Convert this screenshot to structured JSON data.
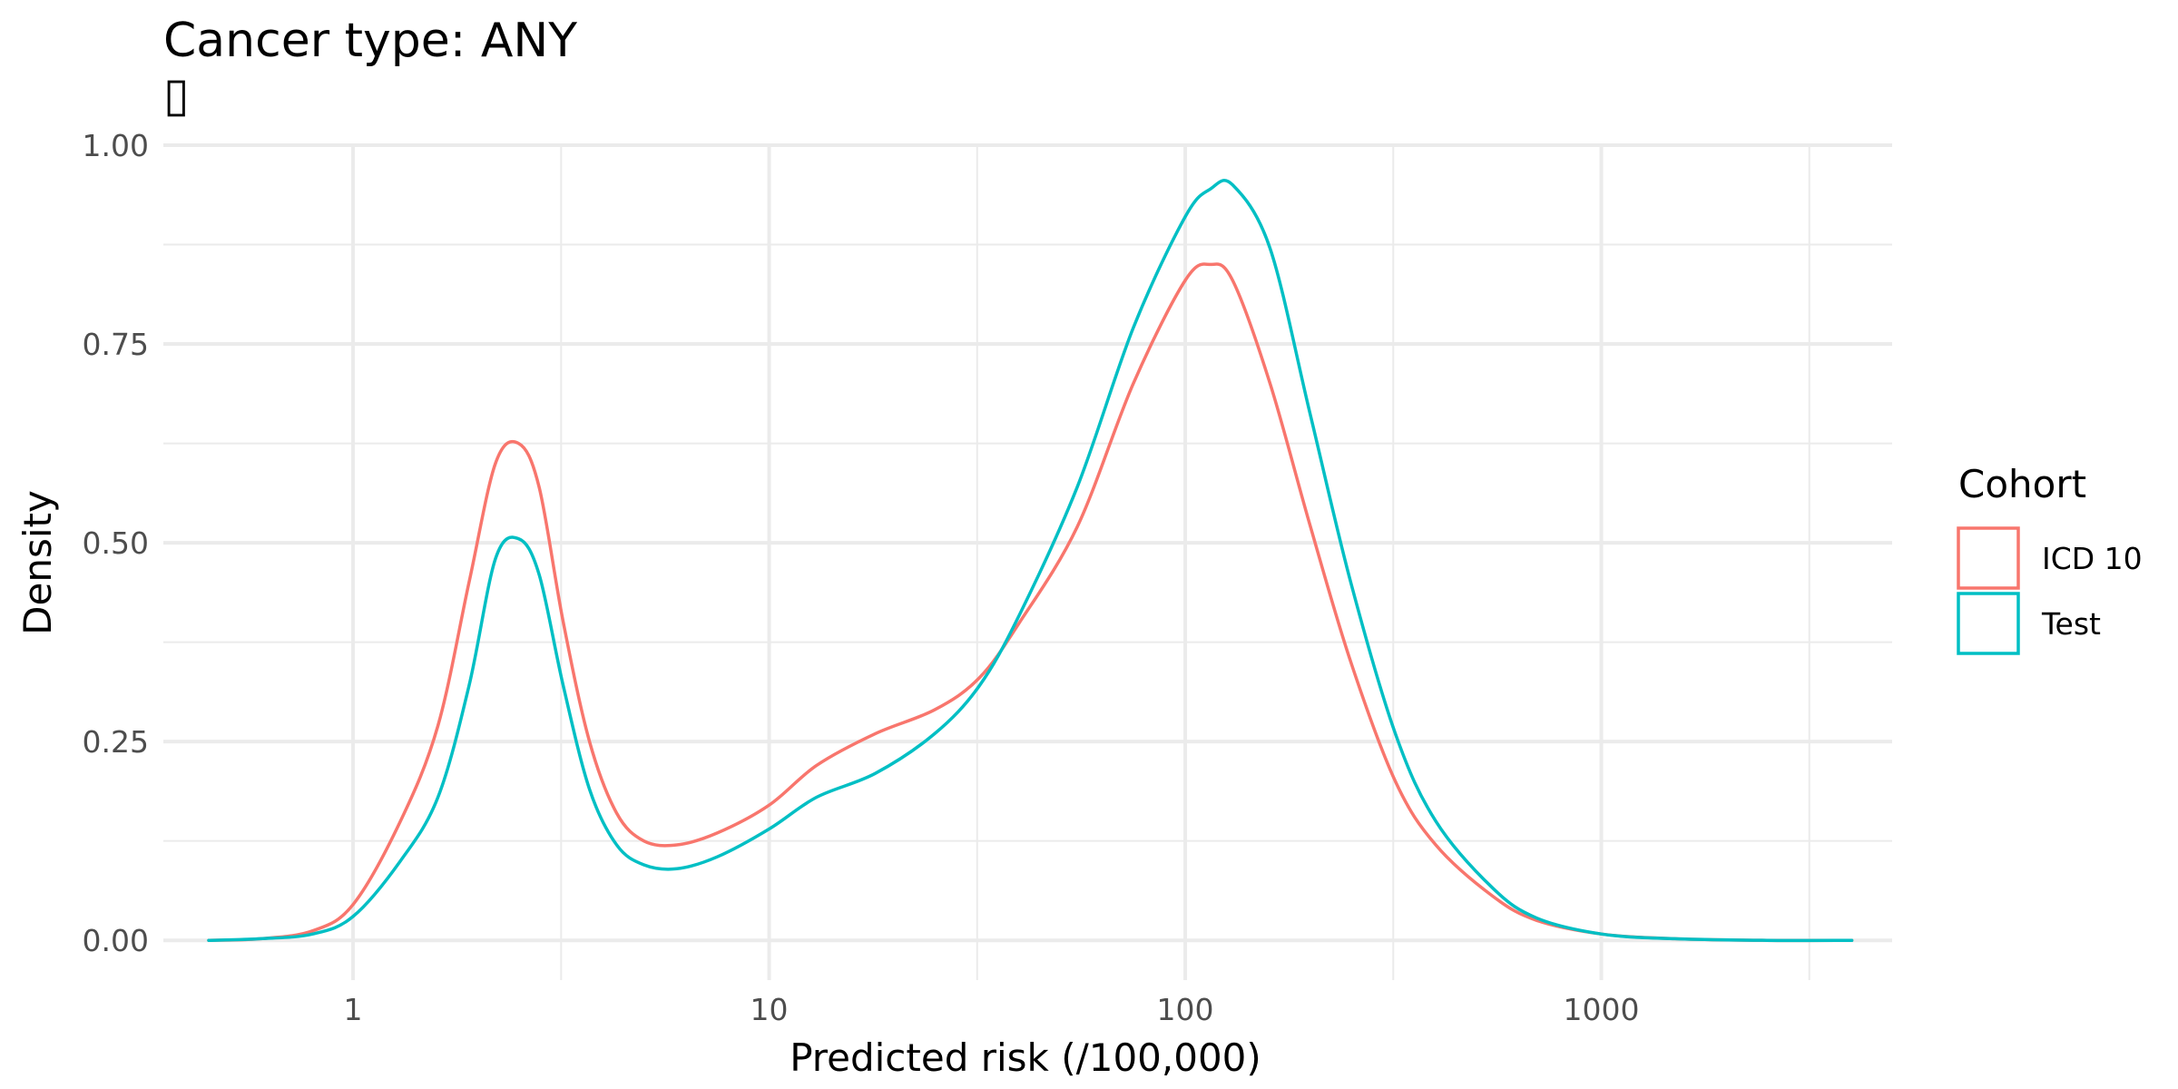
{
  "chart_data": {
    "type": "line",
    "title": "Cancer type: ANY",
    "subtitle_glyph": "▯",
    "xlabel": "Predicted risk (/100,000)",
    "ylabel": "Density",
    "x_scale": "log10",
    "x_range": [
      0.35,
      5000
    ],
    "y_range": [
      -0.05,
      1.0
    ],
    "x_ticks": [
      1,
      10,
      100,
      1000
    ],
    "x_tick_labels": [
      "1",
      "10",
      "100",
      "1000"
    ],
    "y_ticks": [
      0,
      0.25,
      0.5,
      0.75,
      1.0
    ],
    "y_tick_labels": [
      "0.00",
      "0.25",
      "0.50",
      "0.75",
      "1.00"
    ],
    "grid": true,
    "legend": {
      "title": "Cohort",
      "position": "right"
    },
    "series": [
      {
        "name": "ICD 10",
        "color": "#F8766D",
        "x": [
          0.45,
          0.6,
          0.8,
          1.0,
          1.3,
          1.6,
          1.9,
          2.2,
          2.5,
          2.8,
          3.2,
          3.7,
          4.3,
          5.0,
          6.0,
          7.5,
          10,
          13,
          18,
          25,
          32,
          40,
          55,
          75,
          100,
          115,
          130,
          160,
          200,
          250,
          320,
          400,
          550,
          700,
          1000,
          1500,
          2500,
          4000
        ],
        "y": [
          0.0,
          0.002,
          0.012,
          0.045,
          0.15,
          0.27,
          0.45,
          0.6,
          0.625,
          0.57,
          0.4,
          0.25,
          0.16,
          0.125,
          0.12,
          0.135,
          0.17,
          0.22,
          0.26,
          0.29,
          0.33,
          0.4,
          0.52,
          0.7,
          0.83,
          0.85,
          0.83,
          0.7,
          0.52,
          0.35,
          0.2,
          0.12,
          0.055,
          0.025,
          0.008,
          0.002,
          0.0,
          0.0
        ]
      },
      {
        "name": "Test",
        "color": "#00BFC4",
        "x": [
          0.45,
          0.6,
          0.8,
          1.0,
          1.3,
          1.6,
          1.9,
          2.2,
          2.5,
          2.8,
          3.2,
          3.7,
          4.3,
          5.0,
          6.0,
          7.5,
          10,
          13,
          18,
          25,
          32,
          40,
          55,
          75,
          100,
          115,
          130,
          160,
          200,
          250,
          320,
          400,
          550,
          700,
          1000,
          1500,
          2500,
          4000
        ],
        "y": [
          0.0,
          0.002,
          0.008,
          0.03,
          0.1,
          0.18,
          0.32,
          0.48,
          0.505,
          0.46,
          0.32,
          0.19,
          0.12,
          0.095,
          0.09,
          0.105,
          0.14,
          0.18,
          0.21,
          0.26,
          0.32,
          0.41,
          0.57,
          0.77,
          0.91,
          0.945,
          0.95,
          0.87,
          0.66,
          0.45,
          0.26,
          0.15,
          0.065,
          0.028,
          0.008,
          0.002,
          0.0,
          0.0
        ]
      }
    ]
  }
}
